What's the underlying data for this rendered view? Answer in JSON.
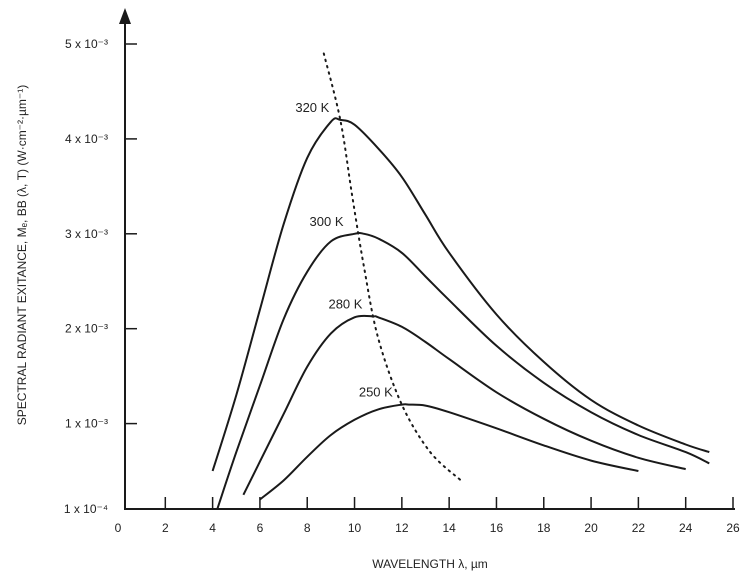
{
  "chart_data": {
    "type": "line",
    "xlabel": "WAVELENGTH λ, µm",
    "ylabel": "SPECTRAL RADIANT EXITANCE, Mₑ, BB (λ, T)  (W·cm⁻²·µm⁻¹)",
    "xlim": [
      0,
      26
    ],
    "ylim": [
      0.0001,
      0.005
    ],
    "x_ticks": [
      "0",
      "2",
      "4",
      "6",
      "8",
      "10",
      "12",
      "14",
      "16",
      "18",
      "20",
      "22",
      "24",
      "26"
    ],
    "y_ticks": [
      {
        "value": 0.0001,
        "label": "1 x 10⁻⁴"
      },
      {
        "value": 0.001,
        "label": "1 x 10⁻³"
      },
      {
        "value": 0.002,
        "label": "2 x 10⁻³"
      },
      {
        "value": 0.003,
        "label": "3 x 10⁻³"
      },
      {
        "value": 0.004,
        "label": "4 x 10⁻³"
      },
      {
        "value": 0.005,
        "label": "5 x 10⁻³"
      }
    ],
    "grid": false,
    "series": [
      {
        "name": "320 K",
        "x": [
          4.0,
          5,
          6,
          7,
          8,
          9,
          9.4,
          10,
          11,
          12,
          13,
          14,
          16,
          18,
          20,
          22,
          24,
          25
        ],
        "y": [
          0.0005,
          0.0013,
          0.0022,
          0.0031,
          0.0038,
          0.00418,
          0.0042,
          0.00415,
          0.0039,
          0.0036,
          0.0032,
          0.0028,
          0.00215,
          0.00165,
          0.00125,
          0.00098,
          0.00078,
          0.0007
        ]
      },
      {
        "name": "300 K",
        "x": [
          4.2,
          5,
          6,
          7,
          8,
          9,
          10,
          10.4,
          11,
          12,
          13,
          14,
          16,
          18,
          20,
          22,
          24,
          25
        ],
        "y": [
          0.0001,
          0.0007,
          0.0014,
          0.0021,
          0.0026,
          0.00292,
          0.003,
          0.003,
          0.00295,
          0.0028,
          0.00255,
          0.0023,
          0.00182,
          0.00143,
          0.00112,
          0.00088,
          0.0007,
          0.00058
        ]
      },
      {
        "name": "280 K",
        "x": [
          5.3,
          6,
          7,
          8,
          9,
          10,
          10.8,
          11,
          12,
          13,
          14,
          16,
          18,
          20,
          22,
          24
        ],
        "y": [
          0.00025,
          0.0006,
          0.0011,
          0.0016,
          0.00195,
          0.00212,
          0.00213,
          0.00212,
          0.00202,
          0.00186,
          0.00168,
          0.00133,
          0.00105,
          0.00082,
          0.00064,
          0.00052
        ]
      },
      {
        "name": "250 K",
        "x": [
          6.0,
          7,
          8,
          9,
          10,
          11,
          12,
          12.3,
          13,
          14,
          16,
          18,
          20,
          22
        ],
        "y": [
          0.0002,
          0.0004,
          0.00065,
          0.00088,
          0.00104,
          0.00115,
          0.0012,
          0.0012,
          0.00119,
          0.00112,
          0.00095,
          0.00077,
          0.00061,
          0.0005
        ]
      }
    ],
    "peak_locus": {
      "x": [
        8.7,
        9.4,
        9.9,
        10.4,
        11.0,
        12.0,
        13.2,
        14.5
      ],
      "y": [
        0.0049,
        0.0042,
        0.0034,
        0.00265,
        0.0019,
        0.0012,
        0.0007,
        0.0004
      ]
    }
  }
}
